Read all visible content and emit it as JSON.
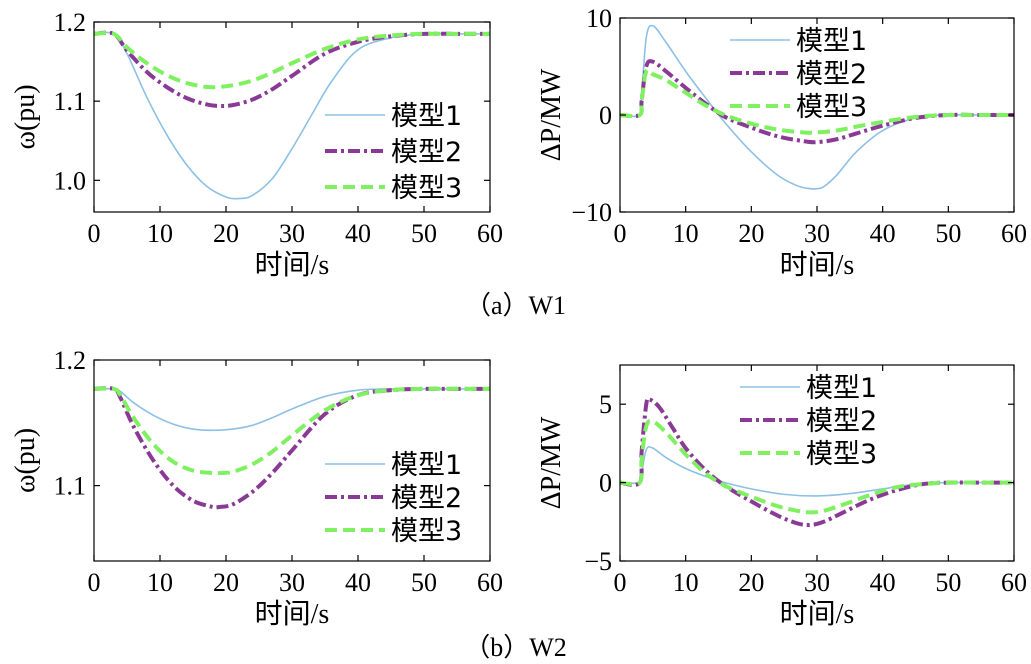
{
  "captions": {
    "a": "（a）W1",
    "b": "（b）W2"
  },
  "series_styles": [
    {
      "name": "模型1",
      "color": "#8ec0e6",
      "dash": "solid"
    },
    {
      "name": "模型2",
      "color": "#8a3a96",
      "dash": "dashdot"
    },
    {
      "name": "模型3",
      "color": "#7ff060",
      "dash": "dashed"
    }
  ],
  "chart_data": [
    {
      "id": "a-left",
      "type": "line",
      "title": "",
      "xlabel": "时间/s",
      "ylabel": "ω(pu)",
      "xlim": [
        0,
        60
      ],
      "ylim": [
        0.96,
        1.2
      ],
      "xticks": [
        0,
        10,
        20,
        30,
        40,
        50,
        60
      ],
      "xtick_labels": [
        "0",
        "10",
        "20",
        "30",
        "40",
        "50",
        "60"
      ],
      "yticks": [
        1.0,
        1.1,
        1.2
      ],
      "ytick_labels": [
        "1.0",
        "1.1",
        "1.2"
      ],
      "legend_position": "bottom-right",
      "series": [
        {
          "name": "模型1",
          "x": [
            0,
            3,
            5,
            8,
            11,
            14,
            17,
            20,
            22,
            24,
            27,
            30,
            33,
            36,
            40,
            45,
            50,
            55,
            60
          ],
          "y": [
            1.185,
            1.185,
            1.16,
            1.105,
            1.058,
            1.02,
            0.993,
            0.979,
            0.977,
            0.981,
            1.002,
            1.04,
            1.083,
            1.125,
            1.165,
            1.18,
            1.185,
            1.185,
            1.185
          ]
        },
        {
          "name": "模型2",
          "x": [
            0,
            3,
            5,
            8,
            11,
            14,
            17,
            19,
            21,
            24,
            27,
            30,
            35,
            40,
            45,
            50,
            55,
            60
          ],
          "y": [
            1.185,
            1.185,
            1.164,
            1.137,
            1.118,
            1.104,
            1.096,
            1.094,
            1.095,
            1.102,
            1.115,
            1.132,
            1.16,
            1.175,
            1.182,
            1.185,
            1.185,
            1.185
          ]
        },
        {
          "name": "模型3",
          "x": [
            0,
            3,
            5,
            8,
            11,
            14,
            17,
            19,
            21,
            24,
            27,
            30,
            35,
            40,
            45,
            50,
            55,
            60
          ],
          "y": [
            1.185,
            1.185,
            1.168,
            1.148,
            1.133,
            1.123,
            1.118,
            1.118,
            1.12,
            1.126,
            1.136,
            1.148,
            1.166,
            1.178,
            1.183,
            1.185,
            1.185,
            1.185
          ]
        }
      ]
    },
    {
      "id": "a-right",
      "type": "line",
      "title": "",
      "xlabel": "时间/s",
      "ylabel": "ΔP/MW",
      "xlim": [
        0,
        60
      ],
      "ylim": [
        -10,
        10
      ],
      "xticks": [
        0,
        10,
        20,
        30,
        40,
        50,
        60
      ],
      "xtick_labels": [
        "0",
        "10",
        "20",
        "30",
        "40",
        "50",
        "60"
      ],
      "yticks": [
        -10,
        0,
        10
      ],
      "ytick_labels": [
        "−10",
        "0",
        "10"
      ],
      "legend_position": "top-right",
      "series": [
        {
          "name": "模型1",
          "x": [
            0,
            3,
            3.3,
            4,
            5,
            7,
            10,
            13,
            16,
            20,
            24,
            27,
            29,
            30,
            31,
            33,
            36,
            40,
            45,
            50,
            55,
            60
          ],
          "y": [
            0,
            0,
            2,
            8,
            9.2,
            7.5,
            4.5,
            1.8,
            -0.8,
            -3.8,
            -6.2,
            -7.3,
            -7.6,
            -7.6,
            -7.4,
            -6.2,
            -3.8,
            -1.6,
            -0.3,
            0,
            0,
            0
          ]
        },
        {
          "name": "模型2",
          "x": [
            0,
            3,
            3.3,
            4,
            5,
            7,
            10,
            13,
            16,
            20,
            24,
            28,
            30,
            33,
            36,
            40,
            45,
            50,
            55,
            60
          ],
          "y": [
            0,
            0,
            1.5,
            5,
            5.5,
            4.5,
            2.8,
            1.2,
            -0.2,
            -1.3,
            -2.2,
            -2.7,
            -2.8,
            -2.5,
            -1.9,
            -1.1,
            -0.3,
            0,
            0,
            0
          ]
        },
        {
          "name": "模型3",
          "x": [
            0,
            3,
            3.3,
            4,
            5,
            7,
            10,
            13,
            16,
            20,
            24,
            28,
            30,
            33,
            36,
            40,
            45,
            50,
            55,
            60
          ],
          "y": [
            0,
            0,
            1.5,
            4.5,
            4.2,
            3.6,
            2.3,
            1.0,
            0,
            -0.9,
            -1.5,
            -1.8,
            -1.8,
            -1.6,
            -1.2,
            -0.7,
            -0.2,
            0,
            0,
            0
          ]
        }
      ]
    },
    {
      "id": "b-left",
      "type": "line",
      "title": "",
      "xlabel": "时间/s",
      "ylabel": "ω(pu)",
      "xlim": [
        0,
        60
      ],
      "ylim": [
        1.04,
        1.2
      ],
      "xticks": [
        0,
        10,
        20,
        30,
        40,
        50,
        60
      ],
      "xtick_labels": [
        "0",
        "10",
        "20",
        "30",
        "40",
        "50",
        "60"
      ],
      "yticks": [
        1.1,
        1.2
      ],
      "ytick_labels": [
        "1.1",
        "1.2"
      ],
      "legend_position": "bottom-right",
      "series": [
        {
          "name": "模型1",
          "x": [
            0,
            3,
            4,
            6,
            9,
            12,
            15,
            18,
            21,
            24,
            27,
            30,
            35,
            40,
            45,
            50,
            55,
            60
          ],
          "y": [
            1.177,
            1.177,
            1.175,
            1.166,
            1.156,
            1.149,
            1.145,
            1.144,
            1.145,
            1.148,
            1.154,
            1.161,
            1.171,
            1.176,
            1.177,
            1.177,
            1.177,
            1.177
          ]
        },
        {
          "name": "模型2",
          "x": [
            0,
            3,
            4,
            6,
            9,
            12,
            15,
            18,
            19,
            21,
            24,
            27,
            30,
            35,
            40,
            45,
            50,
            55,
            60
          ],
          "y": [
            1.177,
            1.177,
            1.17,
            1.147,
            1.12,
            1.1,
            1.088,
            1.083,
            1.083,
            1.085,
            1.095,
            1.11,
            1.128,
            1.157,
            1.172,
            1.176,
            1.177,
            1.177,
            1.177
          ]
        },
        {
          "name": "模型3",
          "x": [
            0,
            3,
            4,
            6,
            9,
            12,
            15,
            18,
            19,
            21,
            24,
            27,
            30,
            35,
            40,
            45,
            50,
            55,
            60
          ],
          "y": [
            1.177,
            1.177,
            1.172,
            1.154,
            1.133,
            1.119,
            1.112,
            1.11,
            1.11,
            1.111,
            1.117,
            1.127,
            1.14,
            1.16,
            1.172,
            1.176,
            1.177,
            1.177,
            1.177
          ]
        }
      ]
    },
    {
      "id": "b-right",
      "type": "line",
      "title": "",
      "xlabel": "时间/s",
      "ylabel": "ΔP/MW",
      "xlim": [
        0,
        60
      ],
      "ylim": [
        -5,
        7.5
      ],
      "xticks": [
        0,
        10,
        20,
        30,
        40,
        50,
        60
      ],
      "xtick_labels": [
        "0",
        "10",
        "20",
        "30",
        "40",
        "50",
        "60"
      ],
      "yticks": [
        -5,
        0,
        5
      ],
      "ytick_labels": [
        "−5",
        "0",
        "5"
      ],
      "legend_position": "top-right",
      "series": [
        {
          "name": "模型1",
          "x": [
            0,
            3,
            3.3,
            4,
            5,
            7,
            10,
            13,
            16,
            20,
            25,
            30,
            35,
            40,
            45,
            50,
            55,
            60
          ],
          "y": [
            0,
            0,
            0.6,
            2.1,
            2.2,
            1.6,
            0.9,
            0.4,
            0,
            -0.4,
            -0.75,
            -0.85,
            -0.7,
            -0.4,
            -0.1,
            0,
            0,
            0
          ]
        },
        {
          "name": "模型2",
          "x": [
            0,
            3,
            3.3,
            4,
            4.5,
            6,
            8,
            10,
            13,
            16,
            20,
            24,
            27,
            29,
            31,
            34,
            38,
            42,
            46,
            50,
            55,
            60
          ],
          "y": [
            0,
            0,
            2,
            5,
            5.3,
            4.8,
            3.5,
            2.2,
            0.8,
            -0.2,
            -1.2,
            -2.1,
            -2.6,
            -2.7,
            -2.5,
            -1.9,
            -1.1,
            -0.5,
            -0.1,
            0,
            0,
            0
          ]
        },
        {
          "name": "模型3",
          "x": [
            0,
            3,
            3.3,
            4,
            5,
            7,
            10,
            13,
            16,
            20,
            24,
            27,
            29,
            31,
            34,
            38,
            42,
            46,
            50,
            55,
            60
          ],
          "y": [
            0,
            0,
            1.5,
            3.6,
            3.9,
            3.2,
            1.8,
            0.6,
            -0.2,
            -0.9,
            -1.5,
            -1.8,
            -1.9,
            -1.8,
            -1.4,
            -0.8,
            -0.3,
            -0.1,
            0,
            0,
            0
          ]
        }
      ]
    }
  ]
}
